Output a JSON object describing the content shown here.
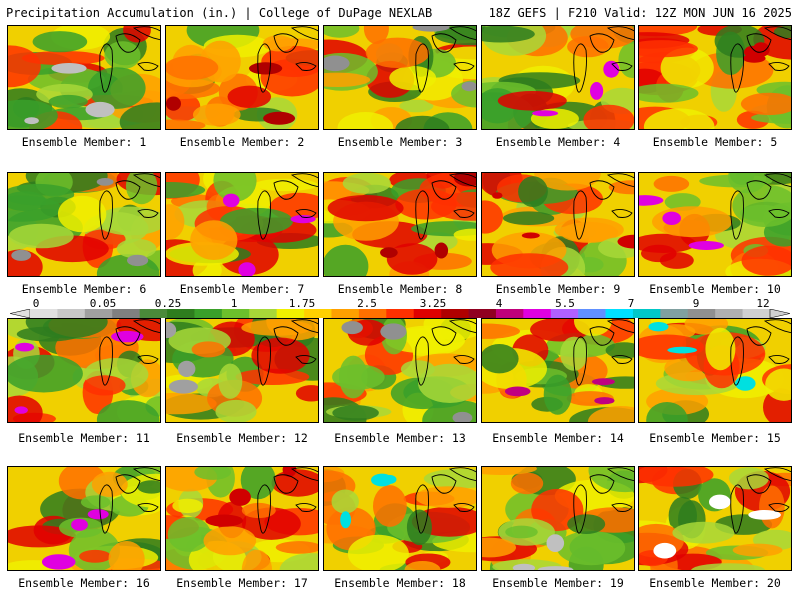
{
  "header": {
    "left_title": "Precipitation Accumulation (in.) | College of DuPage NEXLAB",
    "right_title": "18Z GEFS | F210 Valid: 12Z MON JUN 16 2025"
  },
  "member_label_prefix": "Ensemble Member: ",
  "members": [
    {
      "label": "Ensemble Member: 1",
      "accent": "#c0c0c0"
    },
    {
      "label": "Ensemble Member: 2",
      "accent": "#b00000"
    },
    {
      "label": "Ensemble Member: 3",
      "accent": "#909090"
    },
    {
      "label": "Ensemble Member: 4",
      "accent": "#e000e0"
    },
    {
      "label": "Ensemble Member: 5",
      "accent": "#d00000"
    },
    {
      "label": "Ensemble Member: 6",
      "accent": "#909090"
    },
    {
      "label": "Ensemble Member: 7",
      "accent": "#e000e0"
    },
    {
      "label": "Ensemble Member: 8",
      "accent": "#b00000"
    },
    {
      "label": "Ensemble Member: 9",
      "accent": "#d00000"
    },
    {
      "label": "Ensemble Member: 10",
      "accent": "#e000e0"
    },
    {
      "label": "Ensemble Member: 11",
      "accent": "#e000e0"
    },
    {
      "label": "Ensemble Member: 12",
      "accent": "#a0a0a0"
    },
    {
      "label": "Ensemble Member: 13",
      "accent": "#909090"
    },
    {
      "label": "Ensemble Member: 14",
      "accent": "#c00080"
    },
    {
      "label": "Ensemble Member: 15",
      "accent": "#00e0e0"
    },
    {
      "label": "Ensemble Member: 16",
      "accent": "#e000e0"
    },
    {
      "label": "Ensemble Member: 17",
      "accent": "#d00000"
    },
    {
      "label": "Ensemble Member: 18",
      "accent": "#00e0e0"
    },
    {
      "label": "Ensemble Member: 19",
      "accent": "#c0c0c0"
    },
    {
      "label": "Ensemble Member: 20",
      "accent": "#ffffff"
    }
  ],
  "colorbar": {
    "tick_labels": [
      "0",
      "0.05",
      "0.25",
      "1",
      "1.75",
      "2.5",
      "3.25",
      "4",
      "5.5",
      "7",
      "9",
      "12"
    ],
    "colors": [
      "#e0e0e0",
      "#c8c8c8",
      "#a0a0a0",
      "#808080",
      "#4a8a3a",
      "#2e7d1e",
      "#3aa02a",
      "#6cc02c",
      "#a8d838",
      "#f0f000",
      "#ffd000",
      "#ffa000",
      "#ff7000",
      "#ff3000",
      "#e00000",
      "#b00000",
      "#900020",
      "#c0007a",
      "#e000e0",
      "#b060ff",
      "#6090ff",
      "#00e0ff",
      "#00c8c8",
      "#80a0a0",
      "#909090",
      "#b0b0b0",
      "#d0d0d0"
    ]
  }
}
